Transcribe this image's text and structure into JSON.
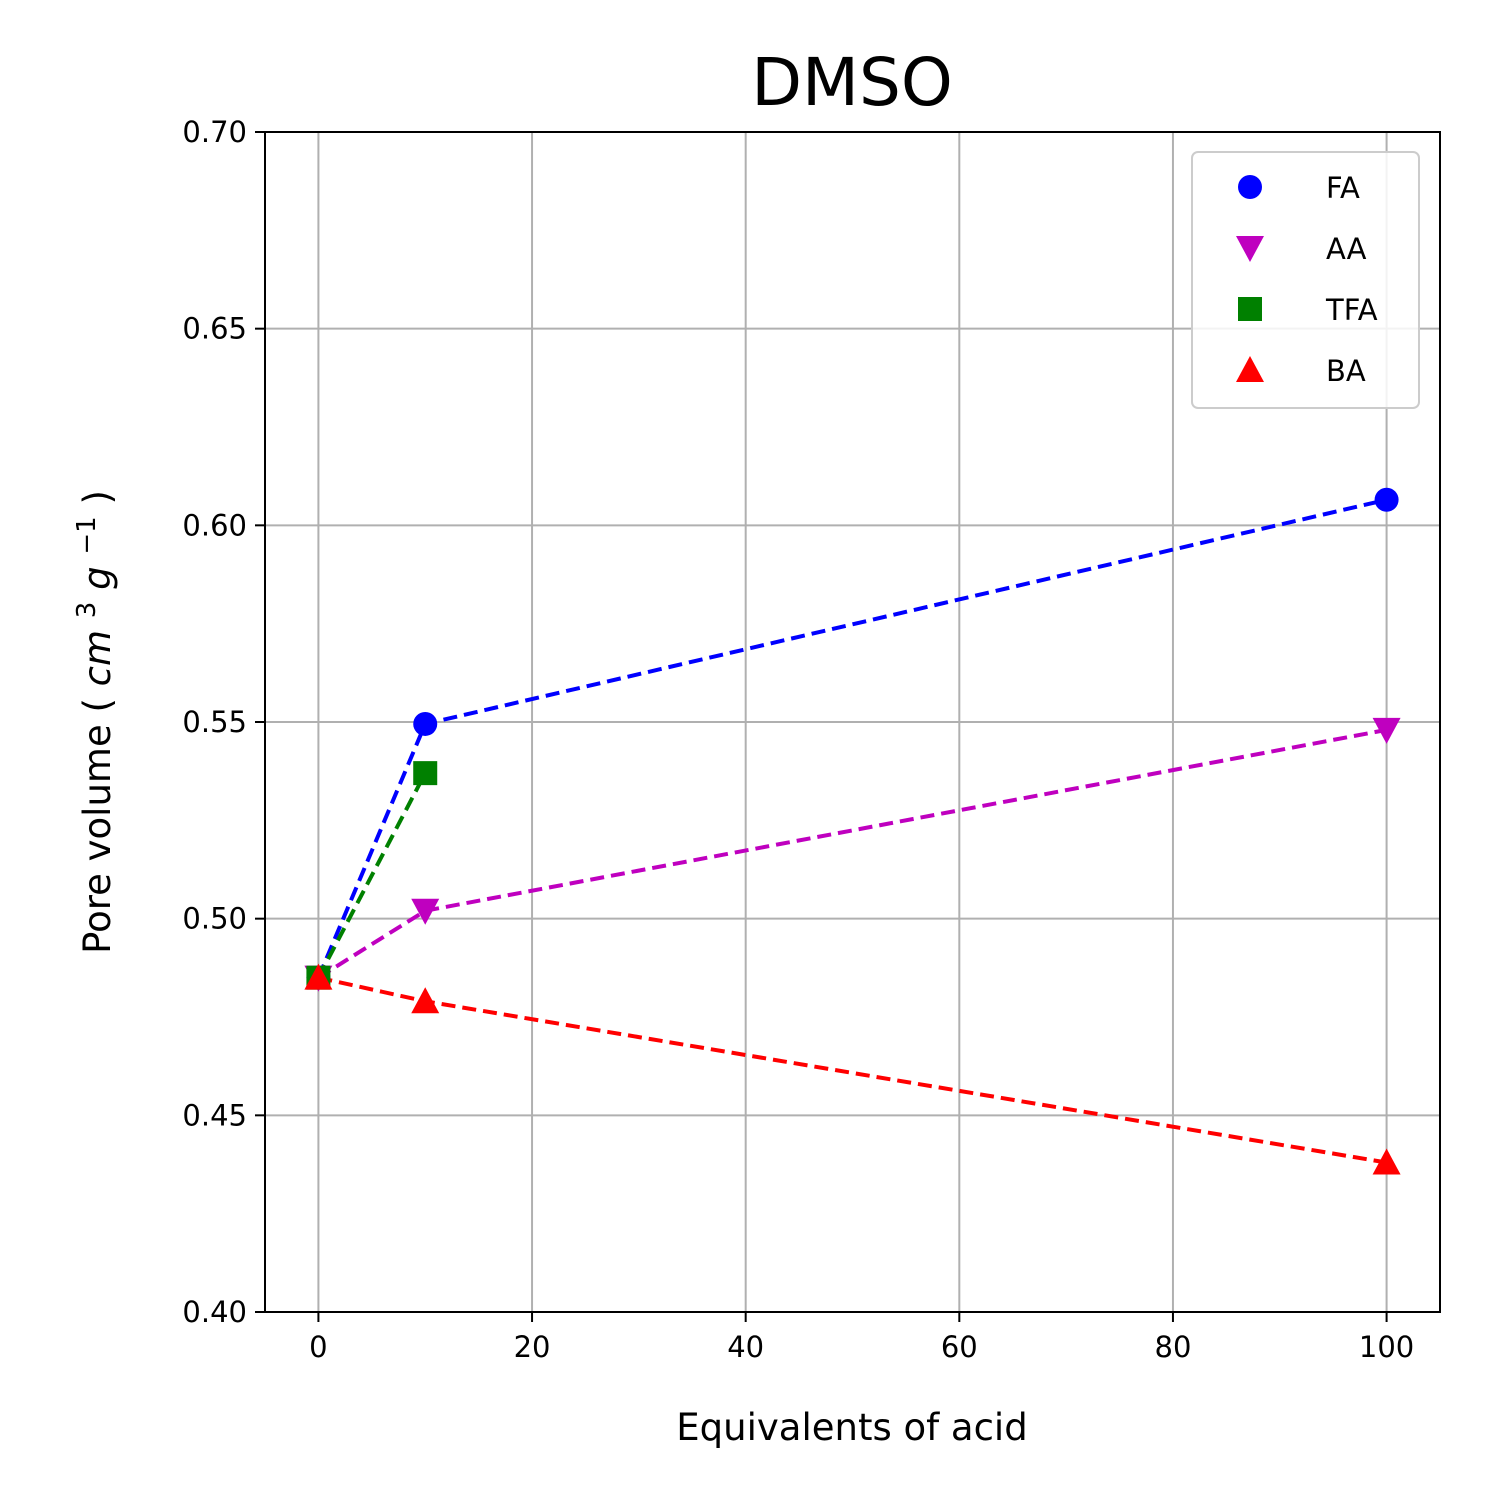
{
  "chart_data": {
    "type": "line",
    "title": "DMSO",
    "xlabel": "Equivalents of acid",
    "ylabel": {
      "text": "Pore volume",
      "unit_open": "(",
      "unit_cm": "cm",
      "unit_cm_sup": "3",
      "unit_g": "g",
      "unit_g_sup": "−1",
      "unit_close": ")"
    },
    "xlim": [
      -5,
      105
    ],
    "ylim": [
      0.4,
      0.7
    ],
    "xticks": [
      0,
      20,
      40,
      60,
      80,
      100
    ],
    "xtick_labels": [
      "0",
      "20",
      "40",
      "60",
      "80",
      "100"
    ],
    "yticks": [
      0.4,
      0.45,
      0.5,
      0.55,
      0.6,
      0.65,
      0.7
    ],
    "ytick_labels": [
      "0.40",
      "0.45",
      "0.50",
      "0.55",
      "0.60",
      "0.65",
      "0.70"
    ],
    "grid": true,
    "legend_position": "top-right",
    "series": [
      {
        "name": "FA",
        "color": "#0000ff",
        "marker": "circle",
        "x": [
          0,
          10,
          100
        ],
        "y": [
          0.485,
          0.5495,
          0.6065
        ]
      },
      {
        "name": "AA",
        "color": "#bf00bf",
        "marker": "triangle-down",
        "x": [
          0,
          10,
          100
        ],
        "y": [
          0.485,
          0.502,
          0.548
        ]
      },
      {
        "name": "TFA",
        "color": "#008000",
        "marker": "square",
        "x": [
          0,
          10
        ],
        "y": [
          0.485,
          0.537
        ]
      },
      {
        "name": "BA",
        "color": "#ff0000",
        "marker": "triangle-up",
        "x": [
          0,
          10,
          100
        ],
        "y": [
          0.485,
          0.479,
          0.438
        ]
      }
    ]
  }
}
